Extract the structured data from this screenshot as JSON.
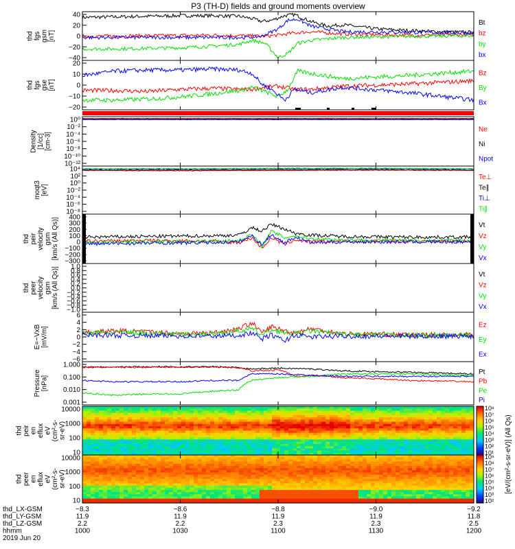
{
  "title": "P3 (TH-D) fields and ground moments overview",
  "colors": {
    "black": "#000000",
    "red": "#ff0000",
    "green": "#00dd00",
    "blue": "#0000ff"
  },
  "chart_data": [
    {
      "type": "line",
      "ylabel": [
        "thd",
        "fgs",
        "gsm",
        "[nT]"
      ],
      "yticks": [
        "40",
        "20",
        "0",
        "−20",
        "−40"
      ],
      "ylim": [
        -40,
        45
      ],
      "series": [
        {
          "name": "Bt",
          "color": "#000000",
          "x": [
            0,
            10,
            20,
            30,
            40,
            48,
            52,
            55,
            58,
            62,
            65,
            70,
            75,
            80,
            90,
            100,
            110,
            120
          ],
          "values": [
            35,
            36,
            37,
            38,
            38,
            37,
            33,
            28,
            30,
            38,
            40,
            28,
            20,
            22,
            15,
            12,
            10,
            9
          ]
        },
        {
          "name": "bz",
          "color": "#ff0000",
          "x": [
            0,
            20,
            40,
            50,
            55,
            60,
            65,
            70,
            80,
            100,
            120
          ],
          "values": [
            2,
            3,
            4,
            3,
            2,
            4,
            8,
            10,
            6,
            4,
            5
          ]
        },
        {
          "name": "by",
          "color": "#00dd00",
          "x": [
            0,
            10,
            20,
            30,
            40,
            48,
            52,
            56,
            60,
            63,
            66,
            70,
            80,
            100,
            120
          ],
          "values": [
            -20,
            -20,
            -19,
            -18,
            -15,
            -12,
            -5,
            -10,
            -35,
            -28,
            -10,
            -5,
            0,
            2,
            3
          ]
        },
        {
          "name": "bx",
          "color": "#0000ff",
          "x": [
            0,
            40,
            50,
            55,
            60,
            63,
            66,
            70,
            80,
            120
          ],
          "values": [
            0,
            0,
            0,
            2,
            15,
            30,
            32,
            20,
            10,
            8
          ]
        }
      ]
    },
    {
      "type": "line",
      "ylabel": [
        "thd",
        "fgs",
        "gse",
        "[nT]"
      ],
      "yticks": [
        "20",
        "10",
        "0",
        "−10",
        "−20"
      ],
      "ylim": [
        -24,
        22
      ],
      "series": [
        {
          "name": "Bz",
          "color": "#ff0000",
          "x": [
            0,
            10,
            20,
            30,
            40,
            48,
            52,
            56,
            60,
            65,
            70,
            80,
            100,
            120
          ],
          "values": [
            -6,
            -6,
            -7,
            -5,
            -4,
            -5,
            -5,
            -3,
            -2,
            -5,
            -5,
            -2,
            0,
            3
          ]
        },
        {
          "name": "By",
          "color": "#00dd00",
          "x": [
            0,
            10,
            20,
            30,
            40,
            48,
            52,
            56,
            60,
            63,
            66,
            70,
            80,
            100,
            120
          ],
          "values": [
            -15,
            -15,
            -14,
            -12,
            -9,
            -6,
            -3,
            -7,
            -12,
            -5,
            12,
            10,
            5,
            8,
            12
          ]
        },
        {
          "name": "Bx",
          "color": "#0000ff",
          "x": [
            0,
            10,
            20,
            30,
            40,
            48,
            52,
            55,
            58,
            62,
            65,
            70,
            80,
            100,
            120
          ],
          "values": [
            8,
            12,
            13,
            13,
            14,
            13,
            10,
            0,
            -5,
            -15,
            -5,
            -8,
            -3,
            -8,
            -15
          ]
        }
      ]
    },
    {
      "type": "line",
      "ylabel": [
        "Density",
        "[1/cc]",
        "[cm-3]"
      ],
      "yticks": [
        "10⁰",
        "10⁻²",
        "10⁻⁴",
        "10⁻⁶",
        "10⁻⁸",
        "10⁻¹⁰",
        "10⁻¹²"
      ],
      "ylim": [
        -13,
        0.5
      ],
      "series": [
        {
          "name": "Ne",
          "color": "#ff0000",
          "x": [
            0,
            120
          ],
          "values": [
            0,
            0
          ]
        },
        {
          "name": "Ni",
          "color": "#000000",
          "x": [
            0,
            120
          ],
          "values": [
            -0.1,
            -0.1
          ]
        },
        {
          "name": "Npot",
          "color": "#0000ff",
          "x": [
            0,
            120
          ],
          "values": [
            -0.3,
            -0.3
          ]
        }
      ]
    },
    {
      "type": "line",
      "ylabel": [
        "moqt3",
        "[eV]"
      ],
      "yticks": [
        "10⁴",
        "10²",
        "10⁰",
        "10⁻²",
        "10⁻⁴",
        "10⁻⁶",
        "10⁻⁸"
      ],
      "ylim": [
        -9,
        4.2
      ],
      "series": [
        {
          "name": "Te⊥",
          "color": "#ff0000",
          "x": [
            0,
            30,
            60,
            90,
            120
          ],
          "values": [
            3.0,
            2.9,
            3.0,
            3.1,
            3.0
          ]
        },
        {
          "name": "Te∥",
          "color": "#000000",
          "x": [
            0,
            30,
            60,
            90,
            120
          ],
          "values": [
            3.1,
            3.1,
            3.2,
            3.2,
            3.1
          ]
        },
        {
          "name": "Ti⊥",
          "color": "#0000ff",
          "x": [
            0,
            30,
            60,
            90,
            120
          ],
          "values": [
            3.4,
            3.4,
            3.5,
            3.5,
            3.4
          ]
        },
        {
          "name": "Ti∥",
          "color": "#00dd00",
          "x": [
            0,
            30,
            60,
            90,
            120
          ],
          "values": [
            3.5,
            3.5,
            3.6,
            3.6,
            3.5
          ]
        }
      ]
    },
    {
      "type": "line",
      "ylabel": [
        "thd",
        "peir",
        "velocity",
        "gsm",
        "[km/s (All Qs)]"
      ],
      "yticks": [
        "400",
        "300",
        "200",
        "100",
        "0",
        "−100",
        "−200",
        "−300"
      ],
      "ylim": [
        -330,
        400
      ],
      "series": [
        {
          "name": "Vt",
          "color": "#000000",
          "x": [
            0,
            20,
            40,
            48,
            52,
            55,
            58,
            62,
            65,
            70,
            80,
            100,
            120
          ],
          "values": [
            60,
            70,
            80,
            90,
            200,
            150,
            250,
            180,
            120,
            90,
            70,
            60,
            60
          ]
        },
        {
          "name": "Vz",
          "color": "#ff0000",
          "x": [
            0,
            20,
            40,
            48,
            52,
            55,
            58,
            62,
            65,
            70,
            80,
            100,
            120
          ],
          "values": [
            0,
            10,
            0,
            -20,
            50,
            -100,
            50,
            -50,
            20,
            -10,
            0,
            0,
            0
          ]
        },
        {
          "name": "Vy",
          "color": "#00dd00",
          "x": [
            0,
            20,
            40,
            48,
            52,
            55,
            58,
            62,
            65,
            70,
            80,
            100,
            120
          ],
          "values": [
            -20,
            -10,
            0,
            10,
            100,
            -80,
            150,
            50,
            80,
            40,
            20,
            10,
            10
          ]
        },
        {
          "name": "Vx",
          "color": "#0000ff",
          "x": [
            0,
            20,
            40,
            48,
            52,
            55,
            58,
            62,
            65,
            70,
            80,
            100,
            120
          ],
          "values": [
            -40,
            -30,
            -20,
            -10,
            80,
            -50,
            100,
            -30,
            60,
            -20,
            -10,
            -10,
            -10
          ]
        }
      ]
    },
    {
      "type": "line",
      "ylabel": [
        "thd",
        "peer",
        "velocity",
        "gsm",
        "[km/s (All Qs)]"
      ],
      "yticks": [
        "1.0",
        "0.8",
        "0.6",
        "0.4",
        "0.2",
        "0.0",
        "−0.2",
        "−0.4",
        "−0.6",
        "−0.8",
        "−1.0"
      ],
      "ylim": [
        -1,
        1
      ],
      "series": [
        {
          "name": "Vt",
          "color": "#000000",
          "x": [],
          "values": []
        },
        {
          "name": "Vz",
          "color": "#ff0000",
          "x": [],
          "values": []
        },
        {
          "name": "Vy",
          "color": "#00dd00",
          "x": [],
          "values": []
        },
        {
          "name": "Vx",
          "color": "#0000ff",
          "x": [],
          "values": []
        }
      ]
    },
    {
      "type": "line",
      "ylabel": [
        "E=−VxB",
        "[mV/m]"
      ],
      "yticks": [
        "6",
        "4",
        "2",
        "0",
        "−2",
        "−4",
        "−6"
      ],
      "ylim": [
        -6,
        6
      ],
      "series": [
        {
          "name": "Ez",
          "color": "#ff0000",
          "x": [
            0,
            10,
            20,
            30,
            40,
            48,
            52,
            55,
            58,
            62,
            65,
            70,
            80,
            100,
            120
          ],
          "values": [
            1,
            1.5,
            1.2,
            0.8,
            1,
            2,
            3.5,
            1,
            2.5,
            1.5,
            1,
            2,
            0.8,
            0.5,
            0.5
          ]
        },
        {
          "name": "Ey",
          "color": "#00dd00",
          "x": [
            0,
            10,
            20,
            30,
            40,
            48,
            52,
            55,
            58,
            62,
            65,
            70,
            80,
            100,
            120
          ],
          "values": [
            0.8,
            1.2,
            1,
            0.6,
            0.8,
            1.5,
            2,
            0.5,
            1.8,
            1,
            0.8,
            1.5,
            0.6,
            0.4,
            0.4
          ]
        },
        {
          "name": "Ex",
          "color": "#0000ff",
          "x": [
            0,
            20,
            40,
            48,
            52,
            55,
            58,
            62,
            65,
            70,
            80,
            100,
            120
          ],
          "values": [
            0.5,
            0.3,
            0.2,
            0.4,
            1,
            -0.5,
            0.5,
            -1,
            0.5,
            0,
            0.2,
            0.2,
            0.2
          ]
        }
      ]
    },
    {
      "type": "line",
      "log": true,
      "ylabel": [
        "Pressure",
        "[nPa]"
      ],
      "yticks": [
        "1.000",
        "0.100",
        "0.010",
        "0.001"
      ],
      "ylim": [
        0.0008,
        1.2
      ],
      "series": [
        {
          "name": "Pt",
          "color": "#000000",
          "x": [
            0,
            20,
            40,
            48,
            52,
            60,
            70,
            80,
            100,
            120
          ],
          "values": [
            0.5,
            0.5,
            0.5,
            0.45,
            0.35,
            0.4,
            0.35,
            0.25,
            0.2,
            0.15
          ]
        },
        {
          "name": "Pb",
          "color": "#ff0000",
          "x": [
            0,
            20,
            40,
            48,
            52,
            60,
            65,
            70,
            80,
            100,
            120
          ],
          "values": [
            0.45,
            0.47,
            0.48,
            0.42,
            0.25,
            0.3,
            0.1,
            0.12,
            0.08,
            0.05,
            0.04
          ]
        },
        {
          "name": "Pe",
          "color": "#00dd00",
          "x": [
            0,
            10,
            20,
            30,
            40,
            48,
            52,
            60,
            70,
            80,
            100,
            120
          ],
          "values": [
            0.006,
            0.004,
            0.005,
            0.005,
            0.008,
            0.01,
            0.05,
            0.08,
            0.1,
            0.15,
            0.15,
            0.12
          ]
        },
        {
          "name": "Pi",
          "color": "#0000ff",
          "x": [
            0,
            10,
            20,
            30,
            40,
            48,
            52,
            60,
            70,
            80,
            100,
            120
          ],
          "values": [
            0.05,
            0.04,
            0.04,
            0.04,
            0.05,
            0.05,
            0.15,
            0.15,
            0.12,
            0.1,
            0.1,
            0.1
          ]
        }
      ]
    },
    {
      "type": "heatmap",
      "ylabel": [
        "thd",
        "peir",
        "en",
        "eflux",
        "eV",
        "(cm²-s-",
        "sr-eV)"
      ],
      "yticks": [
        "10000",
        "1000",
        "100",
        "10"
      ],
      "ylim": [
        5,
        25000
      ]
    },
    {
      "type": "heatmap",
      "ylabel": [
        "thd",
        "peer",
        "en",
        "eflux",
        "eV",
        "(cm²-s-",
        "sr-eV)"
      ],
      "yticks": [
        "10000",
        "1000",
        "100",
        "10"
      ],
      "ylim": [
        5,
        25000
      ]
    }
  ],
  "colorbar": {
    "label": "[eV/(cm²-s-sr-eV)] (All Qs)",
    "ion_ticks": [
      "10⁸",
      "10⁷",
      "10⁶",
      "10⁵",
      "10⁴",
      "10³",
      "10²",
      "10¹"
    ],
    "elec_ticks": [
      "10⁹",
      "10⁸",
      "10⁷",
      "10⁶",
      "10⁵",
      "10⁴",
      "10³",
      "10²"
    ]
  },
  "xaxis": {
    "row_labels": [
      "thd_LX-GSM",
      "thd_LY-GSM",
      "thd_LZ-GSM",
      "hhmm",
      "2019 Jun 20"
    ],
    "columns": [
      [
        "−8.3",
        "11.9",
        "2.2",
        "1000"
      ],
      [
        "−8.6",
        "11.9",
        "2.2",
        "1030"
      ],
      [
        "−8.8",
        "11.9",
        "2.3",
        "1100"
      ],
      [
        "−9.0",
        "11.9",
        "2.3",
        "1130"
      ],
      [
        "−9.2",
        "11.8",
        "2.5",
        "1200"
      ]
    ],
    "range_minutes": [
      0,
      120
    ]
  }
}
